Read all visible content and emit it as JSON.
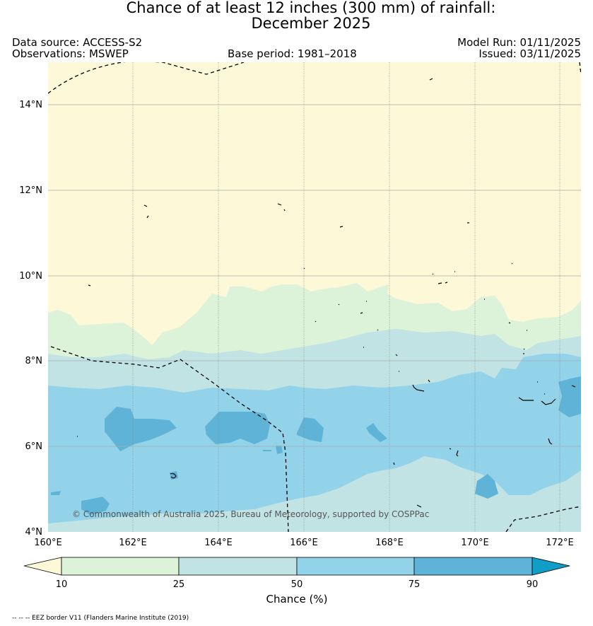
{
  "title": {
    "line1": "Chance of at least 12 inches (300  mm) of rainfall:",
    "line2": "December 2025"
  },
  "meta": {
    "data_source": "Data source: ACCESS-S2",
    "observations": "Observations: MSWEP",
    "base_period": "Base period: 1981–2018",
    "model_run": "Model Run: 01/11/2025",
    "issued": "Issued: 03/11/2025"
  },
  "map": {
    "lat_labels": [
      "14°N",
      "12°N",
      "10°N",
      "8°N",
      "6°N",
      "4°N"
    ],
    "lon_labels": [
      "160°E",
      "162°E",
      "164°E",
      "166°E",
      "168°E",
      "170°E",
      "172°E"
    ],
    "copyright": "© Commonwealth of Australia 2025, Bureau of Meteorology, supported by COSPPac"
  },
  "legend": {
    "ticks": [
      "10",
      "25",
      "50",
      "75",
      "90"
    ],
    "title": "Chance (%)",
    "colors": [
      "#fdf8d8",
      "#ddf3d9",
      "#c2e3e4",
      "#92d3ea",
      "#5fb3d6",
      "#109dc8"
    ]
  },
  "footer": {
    "eez_note": "-- -- -- EEZ border V11 (Flanders Marine Institute (2019)"
  }
}
